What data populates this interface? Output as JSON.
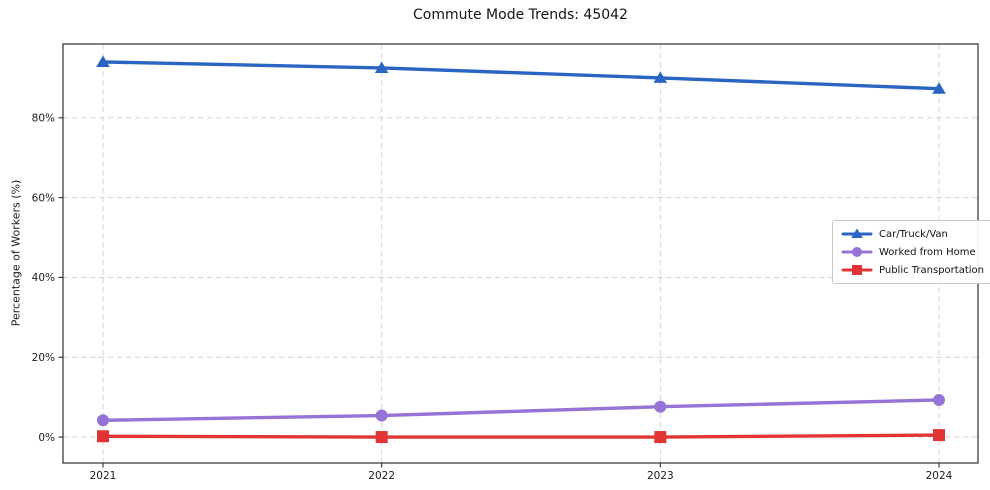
{
  "chart_data": {
    "type": "line",
    "title": "Commute Mode Trends: 45042",
    "xlabel": "",
    "ylabel": "Percentage of Workers (%)",
    "categories": [
      "2021",
      "2022",
      "2023",
      "2024"
    ],
    "series": [
      {
        "name": "Car/Truck/Van",
        "values": [
          94.0,
          92.5,
          90.0,
          87.3
        ],
        "color": "#2b65c4",
        "marker": "triangle"
      },
      {
        "name": "Worked from Home",
        "values": [
          4.2,
          5.4,
          7.6,
          9.3
        ],
        "color": "#9673d6",
        "marker": "circle"
      },
      {
        "name": "Public Transportation",
        "values": [
          0.2,
          0.0,
          0.0,
          0.5
        ],
        "color": "#e13535",
        "marker": "square"
      }
    ],
    "y_ticks": [
      0,
      20,
      40,
      60,
      80
    ],
    "y_tick_labels": [
      "0%",
      "20%",
      "40%",
      "60%",
      "80%"
    ],
    "ylim": [
      -6.5,
      98.5
    ],
    "grid": true,
    "grid_style": "dashed",
    "legend_position": "center-right",
    "colors": {
      "grid": "#d3d3d3",
      "axis_border": "#2d2d2d",
      "tick_text": "#1c1c1c"
    }
  }
}
